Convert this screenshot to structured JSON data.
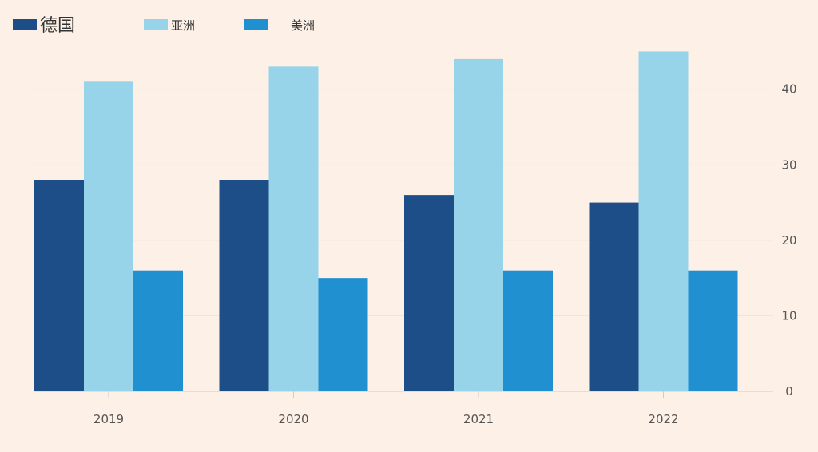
{
  "chart_data": {
    "type": "bar",
    "categories": [
      "2019",
      "2020",
      "2021",
      "2022"
    ],
    "series": [
      {
        "name": "德国",
        "values": [
          28,
          28,
          26,
          25
        ],
        "color": "#1d4e87"
      },
      {
        "name": "亚洲",
        "values": [
          41,
          43,
          44,
          45
        ],
        "color": "#97d3e9"
      },
      {
        "name": "美洲",
        "values": [
          16,
          15,
          16,
          16
        ],
        "color": "#2190d0"
      }
    ],
    "yticks": [
      "0",
      "10",
      "20",
      "30",
      "40"
    ],
    "ylim": [
      0,
      46
    ],
    "grid": true,
    "legend": "top-left",
    "yaxis_side": "right"
  },
  "colors": {
    "background": "#fdf0e6",
    "gridline": "#efe3d8",
    "axis": "#cccccc"
  }
}
